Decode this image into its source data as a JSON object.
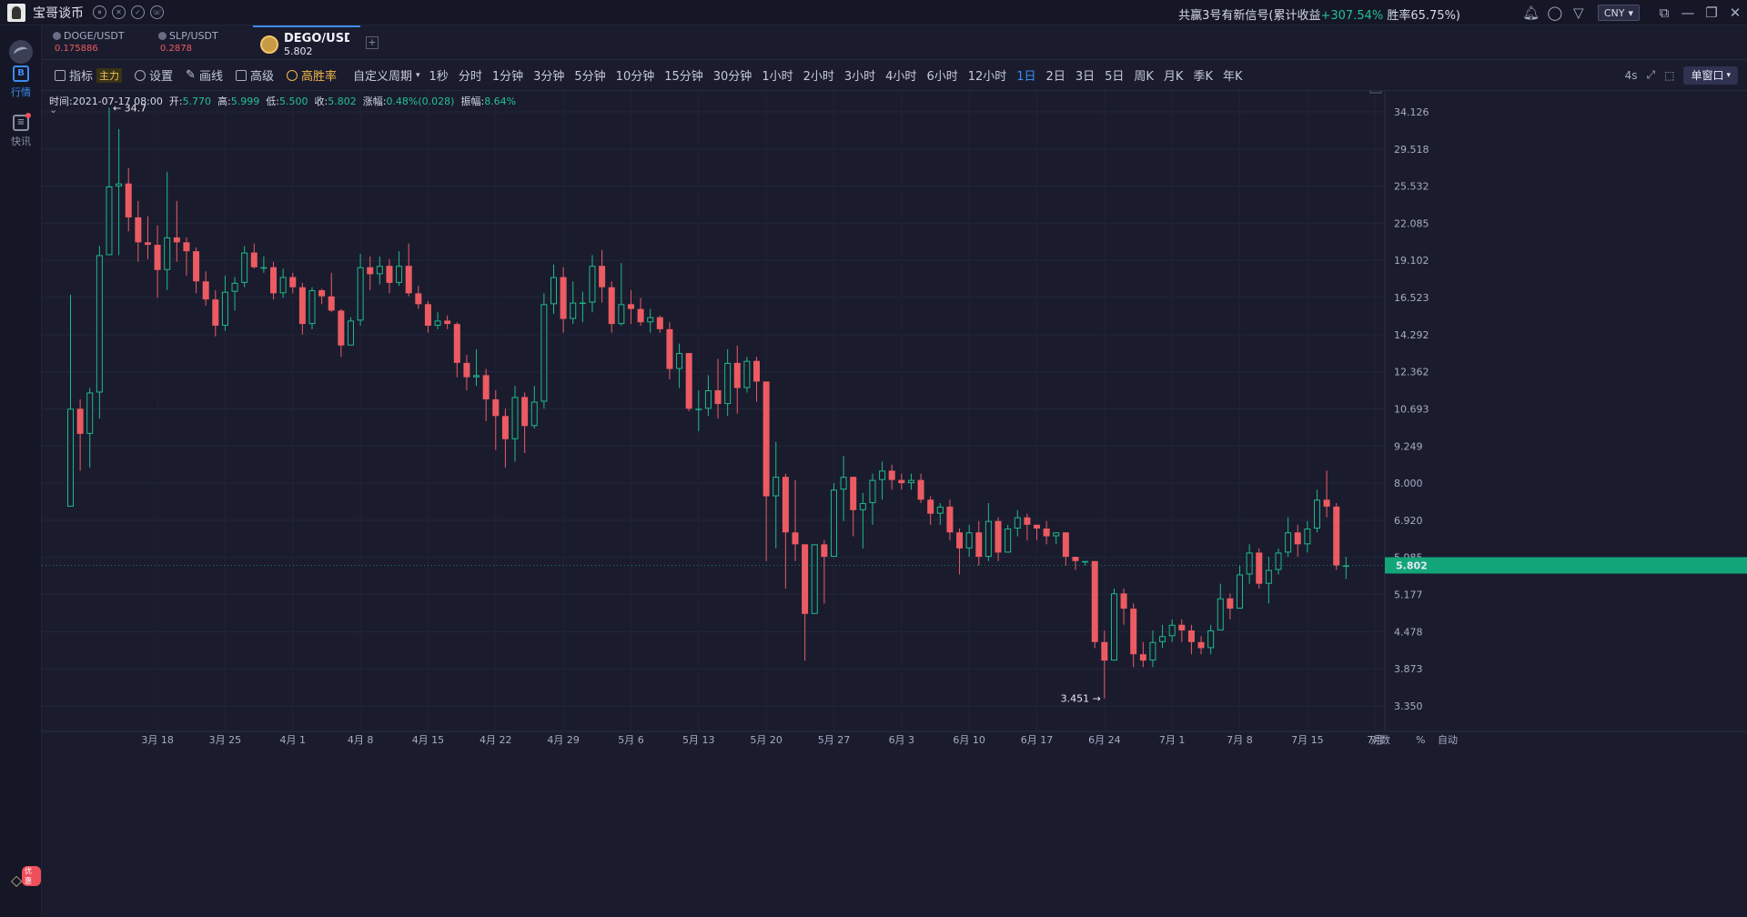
{
  "titlebar": {
    "app_name": "宝哥谈币",
    "signal_prefix": "共赢3号有新信号(累计收益",
    "signal_gain": "+307.54%",
    "signal_suffix": " 胜率65.75%)",
    "currency": "CNY"
  },
  "sidebar": {
    "items": [
      {
        "label": "行情",
        "icon": "B"
      },
      {
        "label": "快讯",
        "icon": "≡"
      }
    ],
    "promo_badge": "优惠"
  },
  "tabs": [
    {
      "symbol": "DOGE/USDT",
      "price": "0.175886"
    },
    {
      "symbol": "SLP/USDT",
      "price": "0.2878"
    },
    {
      "symbol": "DEGO/USDT",
      "price": "5.802",
      "active": true
    }
  ],
  "toolbar": {
    "indicator": "指标",
    "indicator_badge": "主力",
    "settings": "设置",
    "draw": "画线",
    "advanced": "高级",
    "winrate": "高胜率",
    "custom_period": "自定义周期",
    "periods": [
      "1秒",
      "分时",
      "1分钟",
      "3分钟",
      "5分钟",
      "10分钟",
      "15分钟",
      "30分钟",
      "1小时",
      "2小时",
      "3小时",
      "4小时",
      "6小时",
      "12小时",
      "1日",
      "2日",
      "3日",
      "5日",
      "周K",
      "月K",
      "季K",
      "年K"
    ],
    "active_period": "1日",
    "refresh": "4s",
    "window_mode": "单窗口"
  },
  "ohlc": {
    "time_label": "时间:",
    "time": "2021-07-17 08:00",
    "open_label": "开:",
    "open": "5.770",
    "high_label": "高:",
    "high": "5.999",
    "low_label": "低:",
    "low": "5.500",
    "close_label": "收:",
    "close": "5.802",
    "change_label": "涨幅:",
    "change": "0.48%(0.028)",
    "amp_label": "振幅:",
    "amp": "8.64%"
  },
  "chart_data": {
    "type": "candlestick",
    "y_axis_ticks": [
      "34.126",
      "29.518",
      "25.532",
      "22.085",
      "19.102",
      "16.523",
      "14.292",
      "12.362",
      "10.693",
      "9.249",
      "8.000",
      "6.920",
      "5.985",
      "5.177",
      "4.478",
      "3.873",
      "3.350"
    ],
    "scale": "log",
    "x_axis_labels": [
      "3月 18",
      "3月 25",
      "4月 1",
      "4月 8",
      "4月 15",
      "4月 22",
      "4月 29",
      "5月 6",
      "5月 13",
      "5月 20",
      "5月 27",
      "6月 3",
      "6月 10",
      "6月 17",
      "6月 24",
      "7月 1",
      "7月 8",
      "7月 15",
      "7月"
    ],
    "axis_corner": [
      "对数",
      "%",
      "自动"
    ],
    "max_label": "34.7",
    "min_label": "3.451",
    "last_price": "5.802",
    "candles": [
      [
        7.3,
        10.7,
        16.7,
        7.3
      ],
      [
        10.7,
        9.7,
        11.1,
        8.4
      ],
      [
        9.7,
        11.4,
        11.6,
        8.5
      ],
      [
        11.4,
        19.5,
        20.2,
        10.3
      ],
      [
        19.5,
        25.5,
        34.7,
        19.5
      ],
      [
        25.5,
        25.8,
        31.9,
        19.5
      ],
      [
        25.8,
        22.6,
        27.4,
        21.4
      ],
      [
        22.6,
        20.5,
        24.1,
        19.0
      ],
      [
        20.5,
        20.3,
        22.7,
        19.2
      ],
      [
        20.3,
        18.4,
        21.9,
        16.5
      ],
      [
        18.4,
        20.9,
        27.0,
        17.0
      ],
      [
        20.9,
        20.5,
        24.1,
        19.0
      ],
      [
        20.5,
        19.8,
        20.9,
        18.0
      ],
      [
        19.8,
        17.6,
        20.1,
        16.8
      ],
      [
        17.6,
        16.4,
        18.3,
        16.0
      ],
      [
        16.4,
        14.8,
        17.0,
        14.2
      ],
      [
        14.8,
        16.9,
        18.0,
        14.5
      ],
      [
        16.9,
        17.5,
        17.9,
        15.7
      ],
      [
        17.5,
        19.7,
        20.2,
        17.2
      ],
      [
        19.7,
        18.6,
        20.4,
        18.5
      ],
      [
        18.6,
        18.6,
        19.4,
        18.2
      ],
      [
        18.6,
        16.8,
        19.0,
        16.4
      ],
      [
        16.8,
        17.9,
        18.5,
        16.5
      ],
      [
        17.9,
        17.2,
        18.2,
        16.8
      ],
      [
        17.2,
        14.9,
        17.5,
        14.3
      ],
      [
        14.9,
        17.0,
        17.2,
        14.6
      ],
      [
        17.0,
        16.6,
        17.1,
        16.1
      ],
      [
        16.6,
        15.7,
        18.2,
        15.6
      ],
      [
        15.7,
        13.7,
        15.8,
        13.1
      ],
      [
        13.7,
        15.1,
        15.3,
        13.9
      ],
      [
        15.1,
        18.6,
        19.6,
        14.8
      ],
      [
        18.6,
        18.1,
        19.4,
        17.0
      ],
      [
        18.1,
        18.7,
        19.4,
        17.4
      ],
      [
        18.7,
        17.5,
        19.2,
        16.8
      ],
      [
        17.5,
        18.7,
        19.8,
        17.3
      ],
      [
        18.7,
        16.8,
        20.4,
        16.6
      ],
      [
        16.8,
        16.1,
        17.3,
        15.8
      ],
      [
        16.1,
        14.8,
        16.3,
        14.4
      ],
      [
        14.8,
        15.1,
        15.6,
        14.6
      ],
      [
        15.1,
        14.9,
        15.4,
        14.6
      ],
      [
        14.9,
        12.8,
        15.0,
        12.1
      ],
      [
        12.8,
        12.1,
        13.2,
        11.5
      ],
      [
        12.1,
        12.2,
        13.5,
        11.7
      ],
      [
        12.2,
        11.1,
        12.5,
        10.2
      ],
      [
        11.1,
        10.4,
        11.5,
        9.1
      ],
      [
        10.4,
        9.5,
        10.7,
        8.5
      ],
      [
        9.5,
        11.2,
        11.7,
        8.7
      ],
      [
        11.2,
        10.0,
        11.4,
        9.0
      ],
      [
        10.0,
        11.0,
        11.7,
        9.9
      ],
      [
        11.0,
        16.1,
        16.8,
        10.7
      ],
      [
        16.1,
        17.9,
        18.8,
        15.5
      ],
      [
        17.9,
        15.2,
        18.6,
        14.4
      ],
      [
        15.2,
        16.2,
        17.6,
        14.9
      ],
      [
        16.2,
        16.2,
        16.9,
        15.0
      ],
      [
        16.2,
        18.7,
        19.5,
        15.6
      ],
      [
        18.7,
        17.2,
        19.9,
        16.2
      ],
      [
        17.2,
        14.9,
        17.6,
        14.4
      ],
      [
        14.9,
        16.1,
        18.9,
        14.8
      ],
      [
        16.1,
        15.8,
        17.0,
        14.9
      ],
      [
        15.8,
        15.0,
        16.5,
        14.8
      ],
      [
        15.0,
        15.3,
        15.8,
        14.4
      ],
      [
        15.3,
        14.6,
        15.4,
        14.4
      ],
      [
        14.6,
        12.5,
        15.0,
        12.0
      ],
      [
        12.5,
        13.3,
        13.8,
        11.6
      ],
      [
        13.3,
        10.7,
        13.3,
        10.6
      ],
      [
        10.7,
        10.7,
        11.5,
        9.8
      ],
      [
        10.7,
        11.5,
        12.2,
        10.4
      ],
      [
        11.5,
        10.9,
        13.0,
        10.3
      ],
      [
        10.9,
        12.8,
        13.5,
        10.4
      ],
      [
        12.8,
        11.6,
        13.7,
        10.5
      ],
      [
        11.6,
        12.9,
        13.1,
        11.4
      ],
      [
        12.9,
        11.9,
        13.1,
        11.0
      ],
      [
        11.9,
        7.6,
        11.9,
        5.9
      ],
      [
        7.6,
        8.2,
        9.4,
        6.2
      ],
      [
        8.2,
        6.6,
        8.3,
        5.3
      ],
      [
        6.6,
        6.3,
        8.1,
        5.9
      ],
      [
        6.3,
        4.8,
        6.3,
        4.0
      ],
      [
        4.8,
        6.3,
        6.3,
        4.8
      ],
      [
        6.3,
        6.0,
        6.4,
        5.0
      ],
      [
        6.0,
        7.8,
        8.0,
        6.0
      ],
      [
        7.8,
        8.2,
        8.9,
        6.9
      ],
      [
        8.2,
        7.2,
        8.2,
        6.5
      ],
      [
        7.2,
        7.4,
        7.7,
        6.2
      ],
      [
        7.4,
        8.1,
        8.3,
        6.8
      ],
      [
        8.1,
        8.4,
        8.7,
        7.5
      ],
      [
        8.4,
        8.1,
        8.6,
        7.8
      ],
      [
        8.1,
        8.0,
        8.3,
        7.8
      ],
      [
        8.0,
        8.1,
        8.3,
        7.8
      ],
      [
        8.1,
        7.5,
        8.3,
        7.4
      ],
      [
        7.5,
        7.1,
        7.6,
        6.8
      ],
      [
        7.1,
        7.3,
        7.4,
        6.8
      ],
      [
        7.3,
        6.6,
        7.5,
        6.4
      ],
      [
        6.6,
        6.2,
        6.7,
        5.6
      ],
      [
        6.2,
        6.6,
        6.8,
        6.0
      ],
      [
        6.6,
        6.0,
        6.9,
        5.8
      ],
      [
        6.0,
        6.9,
        7.4,
        5.9
      ],
      [
        6.9,
        6.1,
        7.0,
        5.9
      ],
      [
        6.1,
        6.7,
        6.8,
        6.2
      ],
      [
        6.7,
        7.0,
        7.2,
        6.5
      ],
      [
        7.0,
        6.8,
        7.1,
        6.4
      ],
      [
        6.8,
        6.7,
        6.8,
        6.4
      ],
      [
        6.7,
        6.5,
        6.9,
        6.3
      ],
      [
        6.5,
        6.6,
        6.6,
        6.3
      ],
      [
        6.6,
        6.0,
        6.6,
        5.8
      ],
      [
        6.0,
        5.9,
        6.0,
        5.7
      ],
      [
        5.9,
        5.9,
        5.9,
        5.8
      ],
      [
        5.9,
        4.3,
        5.9,
        4.2
      ],
      [
        4.3,
        4.0,
        4.5,
        3.45
      ],
      [
        4.0,
        5.2,
        5.3,
        4.0
      ],
      [
        5.2,
        4.9,
        5.3,
        4.6
      ],
      [
        4.9,
        4.1,
        5.0,
        3.9
      ],
      [
        4.1,
        4.0,
        4.3,
        3.9
      ],
      [
        4.0,
        4.3,
        4.5,
        3.9
      ],
      [
        4.3,
        4.4,
        4.6,
        4.2
      ],
      [
        4.4,
        4.6,
        4.7,
        4.3
      ],
      [
        4.6,
        4.5,
        4.7,
        4.3
      ],
      [
        4.5,
        4.3,
        4.6,
        4.1
      ],
      [
        4.3,
        4.2,
        4.4,
        4.1
      ],
      [
        4.2,
        4.5,
        4.6,
        4.1
      ],
      [
        4.5,
        5.1,
        5.4,
        4.5
      ],
      [
        5.1,
        4.9,
        5.2,
        4.7
      ],
      [
        4.9,
        5.6,
        5.8,
        4.9
      ],
      [
        5.6,
        6.1,
        6.3,
        5.4
      ],
      [
        6.1,
        5.4,
        6.2,
        5.3
      ],
      [
        5.4,
        5.7,
        6.0,
        5.0
      ],
      [
        5.7,
        6.1,
        6.2,
        5.6
      ],
      [
        6.1,
        6.6,
        7.0,
        6.0
      ],
      [
        6.6,
        6.3,
        6.8,
        6.0
      ],
      [
        6.3,
        6.7,
        6.9,
        6.1
      ],
      [
        6.7,
        7.5,
        7.8,
        6.6
      ],
      [
        7.5,
        7.3,
        8.4,
        7.0
      ],
      [
        7.3,
        5.8,
        7.4,
        5.7
      ],
      [
        5.77,
        5.8,
        6.0,
        5.5
      ]
    ]
  }
}
